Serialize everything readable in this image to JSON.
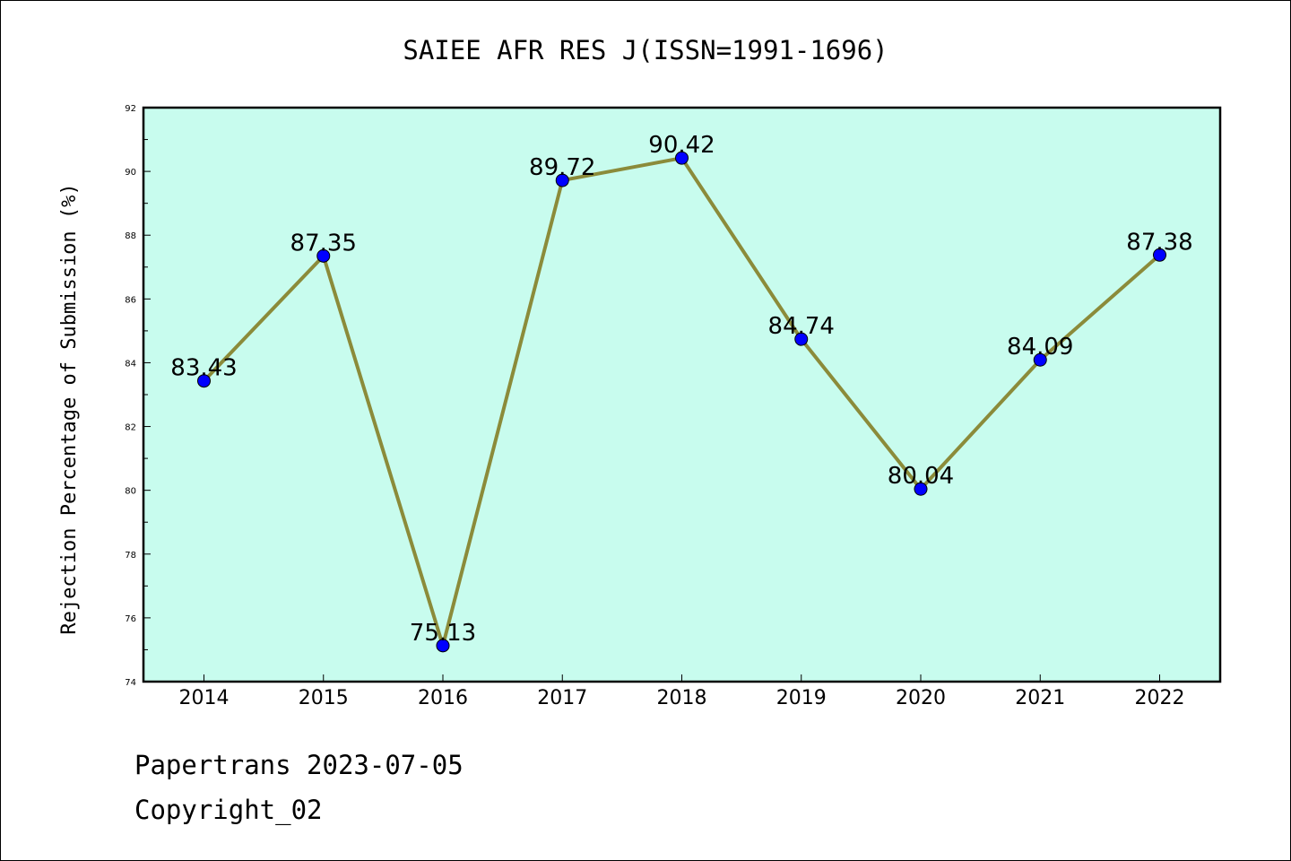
{
  "chart_data": {
    "type": "line",
    "title": "SAIEE AFR RES J(ISSN=1991-1696)",
    "xlabel": "",
    "ylabel": "Rejection Percentage of Submission (%)",
    "categories": [
      "2014",
      "2015",
      "2016",
      "2017",
      "2018",
      "2019",
      "2020",
      "2021",
      "2022"
    ],
    "values": [
      83.43,
      87.35,
      75.13,
      89.72,
      90.42,
      84.74,
      80.04,
      84.09,
      87.38
    ],
    "data_labels": [
      "83.43",
      "87.35",
      "75.13",
      "89.72",
      "90.42",
      "84.74",
      "80.04",
      "84.09",
      "87.38"
    ],
    "ylim": [
      74,
      92
    ],
    "yticks": [
      "74",
      "76",
      "78",
      "80",
      "82",
      "84",
      "86",
      "88",
      "90",
      "92"
    ],
    "grid": false,
    "colors": {
      "plot_background": "#c8fcee",
      "line": "#8b8b3a",
      "marker": "#0000ff"
    }
  },
  "footer": {
    "source": "Papertrans 2023-07-05",
    "copyright": "Copyright_02"
  }
}
